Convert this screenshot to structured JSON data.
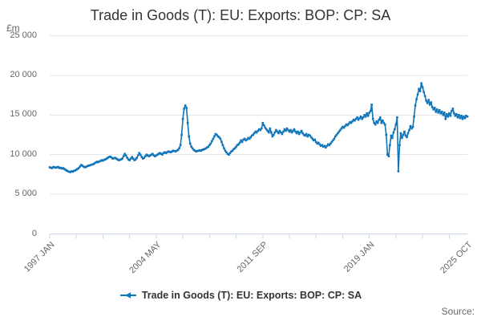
{
  "header": {
    "title": "Trade in Goods (T): EU: Exports: BOP: CP: SA"
  },
  "y_axis": {
    "unit": "£m",
    "tick_labels": [
      "0",
      "5 000",
      "10 000",
      "15 000",
      "20 000",
      "25 000"
    ],
    "tick_values": [
      0,
      5000,
      10000,
      15000,
      20000,
      25000
    ]
  },
  "x_axis": {
    "tick_labels": [
      "1997 JAN",
      "2004 MAY",
      "2011 SEP",
      "2019 JAN",
      "2025 OCT"
    ],
    "tick_months": [
      0,
      88,
      176,
      264,
      345
    ],
    "minor_tick_interval_months": 22
  },
  "legend": {
    "label": "Trade in Goods (T): EU: Exports: BOP: CP: SA"
  },
  "footer": {
    "source": "Source:"
  },
  "colors": {
    "series": "#1074b9",
    "axis": "#ccd6eb",
    "grid": "#e6e6e6",
    "muted_text": "#666666",
    "title_text": "#333333"
  },
  "chart_data": {
    "type": "line",
    "title": "Trade in Goods (T): EU: Exports: BOP: CP: SA",
    "ylabel": "£m",
    "ylim": [
      0,
      25000
    ],
    "grid": "horizontal",
    "legend_position": "bottom",
    "frequency": "monthly",
    "x_start": "1997 JAN",
    "x_end": "2025 OCT",
    "n_points": 346,
    "x_tick_labels": [
      "1997 JAN",
      "2004 MAY",
      "2011 SEP",
      "2019 JAN",
      "2025 OCT"
    ],
    "y_tick_labels": [
      "0",
      "5 000",
      "10 000",
      "15 000",
      "20 000",
      "25 000"
    ],
    "series": [
      {
        "name": "Trade in Goods (T): EU: Exports: BOP: CP: SA",
        "values": [
          8400,
          8350,
          8300,
          8450,
          8400,
          8350,
          8400,
          8450,
          8300,
          8350,
          8250,
          8300,
          8200,
          8100,
          8000,
          7900,
          7850,
          7800,
          7900,
          7850,
          7950,
          8000,
          8100,
          8200,
          8300,
          8500,
          8700,
          8600,
          8500,
          8400,
          8450,
          8550,
          8600,
          8650,
          8700,
          8750,
          8800,
          8900,
          9000,
          9100,
          9050,
          9150,
          9200,
          9300,
          9250,
          9350,
          9400,
          9500,
          9600,
          9700,
          9750,
          9650,
          9500,
          9550,
          9600,
          9500,
          9400,
          9300,
          9350,
          9400,
          9500,
          9800,
          10100,
          9900,
          9600,
          9400,
          9300,
          9500,
          9700,
          9500,
          9300,
          9400,
          9600,
          9900,
          10200,
          10000,
          9700,
          9500,
          9600,
          9800,
          10000,
          9900,
          9800,
          9900,
          10000,
          10100,
          9900,
          9800,
          9900,
          10000,
          10100,
          10200,
          10100,
          10000,
          10200,
          10300,
          10200,
          10300,
          10400,
          10350,
          10300,
          10400,
          10500,
          10450,
          10400,
          10500,
          10600,
          10800,
          11200,
          12500,
          14500,
          15800,
          16200,
          15900,
          14000,
          12300,
          11400,
          11000,
          10800,
          10600,
          10500,
          10400,
          10450,
          10500,
          10550,
          10500,
          10600,
          10650,
          10700,
          10800,
          10900,
          11000,
          11200,
          11400,
          11700,
          12000,
          12300,
          12600,
          12500,
          12300,
          12200,
          12000,
          11600,
          11200,
          10800,
          10500,
          10300,
          10100,
          10000,
          10200,
          10400,
          10500,
          10700,
          10800,
          11000,
          11200,
          11300,
          11500,
          11800,
          11600,
          11900,
          12000,
          11800,
          11900,
          12100,
          12000,
          12200,
          12400,
          12500,
          12700,
          12900,
          12800,
          13000,
          13200,
          13100,
          13300,
          14000,
          13700,
          13400,
          13200,
          13000,
          12800,
          13300,
          12800,
          12300,
          12500,
          12800,
          13100,
          12900,
          12700,
          13000,
          12800,
          12600,
          12900,
          13200,
          13000,
          13300,
          13100,
          12900,
          13100,
          12800,
          13000,
          13200,
          12900,
          12700,
          12900,
          12600,
          12800,
          13000,
          12700,
          12500,
          12400,
          12600,
          12300,
          12500,
          12400,
          12200,
          12000,
          11800,
          11900,
          11600,
          11400,
          11500,
          11300,
          11100,
          11200,
          11000,
          11100,
          10900,
          11100,
          11300,
          11200,
          11400,
          11600,
          11800,
          12000,
          12300,
          12500,
          12700,
          12900,
          13100,
          13300,
          13500,
          13400,
          13600,
          13800,
          13700,
          13900,
          14100,
          14000,
          14200,
          14400,
          14300,
          14500,
          14700,
          14400,
          14600,
          14800,
          14500,
          14700,
          15000,
          14800,
          15200,
          14900,
          15300,
          15500,
          16300,
          14500,
          14000,
          13800,
          14200,
          14000,
          14400,
          14700,
          14000,
          14300,
          14000,
          13800,
          12500,
          10000,
          9800,
          11200,
          12400,
          12100,
          12800,
          13200,
          13800,
          14700,
          7900,
          11200,
          12700,
          12100,
          12500,
          12900,
          12400,
          12200,
          12700,
          13100,
          13600,
          13300,
          13500,
          14800,
          16200,
          17000,
          17600,
          18300,
          18000,
          19000,
          18500,
          17900,
          17400,
          16800,
          16500,
          16900,
          16300,
          16600,
          16000,
          15700,
          15900,
          15400,
          15700,
          15300,
          15600,
          15200,
          15400,
          15000,
          15300,
          14500,
          15100,
          14800,
          15200,
          14900,
          15500,
          15800,
          15200,
          14900,
          15100,
          14700,
          15000,
          14600,
          14900,
          14500,
          14800,
          14600,
          14900,
          14800
        ]
      }
    ]
  }
}
